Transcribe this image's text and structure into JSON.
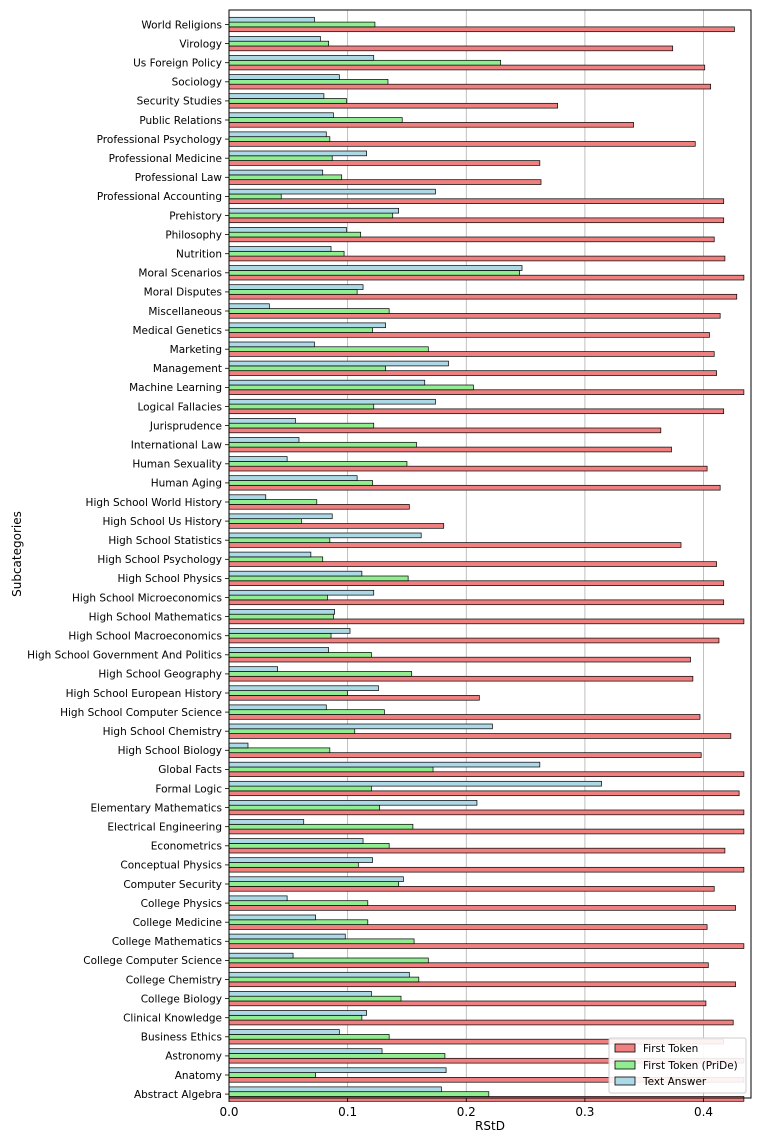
{
  "chart_data": {
    "type": "bar",
    "orientation": "horizontal",
    "xlabel": "RStD",
    "ylabel": "Subcategories",
    "xlim": [
      0,
      0.44
    ],
    "xticks": [
      0.0,
      0.1,
      0.2,
      0.3,
      0.4
    ],
    "xtick_labels": [
      "0.0",
      "0.1",
      "0.2",
      "0.3",
      "0.4"
    ],
    "grid": "vertical gridlines at x ticks",
    "legend_position": "bottom-right",
    "categories": [
      "World Religions",
      "Virology",
      "Us Foreign Policy",
      "Sociology",
      "Security Studies",
      "Public Relations",
      "Professional Psychology",
      "Professional Medicine",
      "Professional Law",
      "Professional Accounting",
      "Prehistory",
      "Philosophy",
      "Nutrition",
      "Moral Scenarios",
      "Moral Disputes",
      "Miscellaneous",
      "Medical Genetics",
      "Marketing",
      "Management",
      "Machine Learning",
      "Logical Fallacies",
      "Jurisprudence",
      "International Law",
      "Human Sexuality",
      "Human Aging",
      "High School World History",
      "High School Us History",
      "High School Statistics",
      "High School Psychology",
      "High School Physics",
      "High School Microeconomics",
      "High School Mathematics",
      "High School Macroeconomics",
      "High School Government And Politics",
      "High School Geography",
      "High School European History",
      "High School Computer Science",
      "High School Chemistry",
      "High School Biology",
      "Global Facts",
      "Formal Logic",
      "Elementary Mathematics",
      "Electrical Engineering",
      "Econometrics",
      "Conceptual Physics",
      "Computer Security",
      "College Physics",
      "College Medicine",
      "College Mathematics",
      "College Computer Science",
      "College Chemistry",
      "College Biology",
      "Clinical Knowledge",
      "Business Ethics",
      "Astronomy",
      "Anatomy",
      "Abstract Algebra"
    ],
    "series": [
      {
        "name": "First Token",
        "color": "#f08080",
        "values": [
          0.426,
          0.374,
          0.401,
          0.406,
          0.277,
          0.341,
          0.393,
          0.262,
          0.263,
          0.417,
          0.417,
          0.409,
          0.418,
          0.434,
          0.428,
          0.414,
          0.405,
          0.409,
          0.411,
          0.434,
          0.417,
          0.364,
          0.373,
          0.403,
          0.414,
          0.152,
          0.181,
          0.381,
          0.411,
          0.417,
          0.417,
          0.434,
          0.413,
          0.389,
          0.391,
          0.211,
          0.397,
          0.423,
          0.398,
          0.434,
          0.43,
          0.434,
          0.434,
          0.418,
          0.434,
          0.409,
          0.427,
          0.403,
          0.434,
          0.404,
          0.427,
          0.402,
          0.425,
          0.417,
          0.434,
          0.434,
          0.434
        ]
      },
      {
        "name": "First Token (PriDe)",
        "color": "#90ee90",
        "values": [
          0.123,
          0.084,
          0.229,
          0.134,
          0.099,
          0.146,
          0.085,
          0.087,
          0.095,
          0.044,
          0.138,
          0.111,
          0.097,
          0.245,
          0.108,
          0.135,
          0.121,
          0.168,
          0.132,
          0.206,
          0.122,
          0.122,
          0.158,
          0.15,
          0.121,
          0.074,
          0.061,
          0.085,
          0.079,
          0.151,
          0.083,
          0.088,
          0.086,
          0.12,
          0.154,
          0.1,
          0.131,
          0.106,
          0.085,
          0.172,
          0.12,
          0.127,
          0.155,
          0.135,
          0.109,
          0.143,
          0.117,
          0.117,
          0.156,
          0.168,
          0.16,
          0.145,
          0.112,
          0.135,
          0.182,
          0.073,
          0.219
        ]
      },
      {
        "name": "Text Answer",
        "color": "#add8e6",
        "values": [
          0.072,
          0.077,
          0.122,
          0.093,
          0.08,
          0.088,
          0.082,
          0.116,
          0.079,
          0.174,
          0.143,
          0.099,
          0.086,
          0.247,
          0.113,
          0.034,
          0.132,
          0.072,
          0.185,
          0.165,
          0.174,
          0.056,
          0.059,
          0.049,
          0.108,
          0.031,
          0.087,
          0.162,
          0.069,
          0.112,
          0.122,
          0.089,
          0.102,
          0.084,
          0.041,
          0.126,
          0.082,
          0.222,
          0.016,
          0.262,
          0.314,
          0.209,
          0.063,
          0.113,
          0.121,
          0.147,
          0.049,
          0.073,
          0.098,
          0.054,
          0.152,
          0.12,
          0.116,
          0.093,
          0.129,
          0.183,
          0.179
        ]
      }
    ]
  }
}
